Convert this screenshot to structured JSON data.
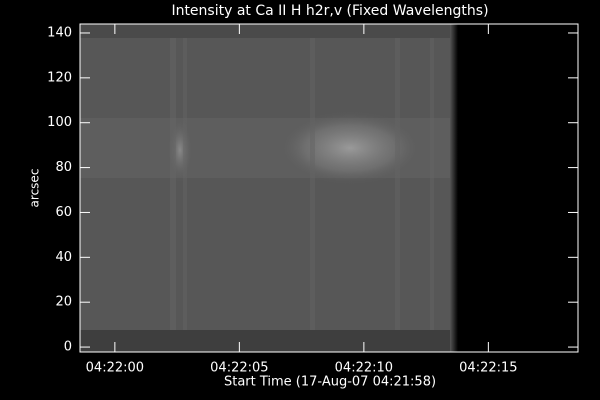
{
  "chart_data": {
    "type": "image",
    "title": "Intensity at Ca II H h2r,v (Fixed Wavelengths)",
    "x_label": "Start Time (17-Aug-07 04:21:58)",
    "y_label": "arcsec",
    "xlim": [
      0.6,
      20.6
    ],
    "xticks": [
      {
        "value": 2,
        "label": "04:22:00"
      },
      {
        "value": 7,
        "label": "04:22:05"
      },
      {
        "value": 12,
        "label": "04:22:10"
      },
      {
        "value": 17,
        "label": "04:22:15"
      }
    ],
    "ylim": [
      -2.2,
      144
    ],
    "yticks": [
      0,
      20,
      40,
      60,
      80,
      100,
      120,
      140
    ]
  }
}
